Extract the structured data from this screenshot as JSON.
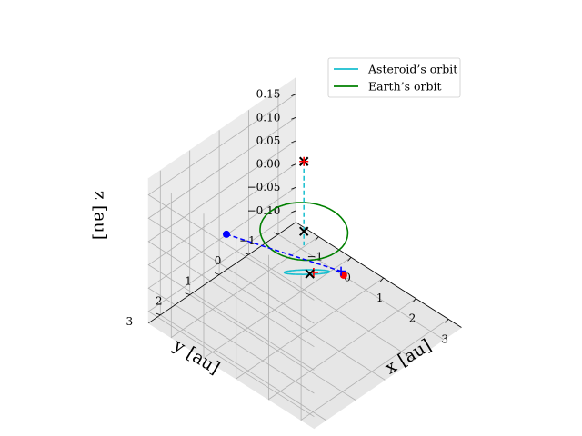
{
  "chart_data": {
    "type": "3d-line",
    "title": "",
    "legend": {
      "placement": "top-right",
      "entries": [
        {
          "label": "Asteroid’s orbit",
          "color": "#17becf"
        },
        {
          "label": "Earth’s orbit",
          "color": "#008000"
        }
      ]
    },
    "axes": {
      "x": {
        "label": "x [au]",
        "range": [
          -1.7,
          3.4
        ],
        "ticks": [
          -1,
          0,
          1,
          2,
          3
        ],
        "tick_labels": [
          "−1",
          "0",
          "1",
          "2",
          "3"
        ]
      },
      "y": {
        "label": "y [au]",
        "range": [
          -1.6,
          3.4
        ],
        "ticks": [
          -1,
          0,
          1,
          2,
          3
        ],
        "tick_labels": [
          "−1",
          "0",
          "1",
          "2",
          "3"
        ]
      },
      "z": {
        "label": "z [au]",
        "range": [
          -0.125,
          0.185
        ],
        "ticks": [
          -0.1,
          -0.05,
          0.0,
          0.05,
          0.1,
          0.15
        ],
        "tick_labels": [
          "−0.10",
          "−0.05",
          "0.00",
          "0.05",
          "0.10",
          "0.15"
        ]
      },
      "grid": true
    },
    "series": [
      {
        "name": "Asteroid’s orbit",
        "kind": "ellipse",
        "color": "#17becf",
        "style": "solid",
        "center": [
          1.0,
          1.0,
          0.0
        ],
        "semi_axes": [
          2.6,
          0.5
        ],
        "major_direction": [
          1,
          1,
          0.0638
        ],
        "minor_direction": [
          -1,
          1,
          0
        ]
      },
      {
        "name": "Earth’s orbit",
        "kind": "circle",
        "color": "#008000",
        "style": "solid",
        "center": [
          0,
          0,
          0
        ],
        "radius": 1.0
      }
    ],
    "markers": [
      {
        "label": "",
        "type": "dot",
        "color": "#0000ff",
        "point": [
          -0.3,
          2.3,
          0.08
        ]
      },
      {
        "label": "",
        "type": "dot",
        "color": "#ff0000",
        "point": [
          0.95,
          -0.3,
          -0.065
        ]
      },
      {
        "label": "",
        "type": "plus",
        "color": "#0000ff",
        "point": [
          0.6,
          -0.6,
          -0.085
        ]
      },
      {
        "label": "",
        "type": "plus",
        "color": "#ff0000",
        "point": [
          0.3,
          0.0,
          -0.075
        ]
      },
      {
        "label": "",
        "type": "x",
        "color": "#000000",
        "point": [
          0.0,
          -0.2,
          -0.1
        ]
      },
      {
        "label": "",
        "type": "x",
        "color": "#000000",
        "point": [
          0.0,
          0.0,
          0.0
        ]
      },
      {
        "label": "",
        "type": "x",
        "color": "#000000",
        "point": [
          0.0,
          0.0,
          0.15
        ]
      },
      {
        "label": "",
        "type": "plus",
        "color": "#ff0000",
        "point": [
          0.0,
          0.0,
          0.15
        ]
      }
    ],
    "segments": [
      {
        "from": [
          -0.3,
          2.3,
          0.08
        ],
        "to": [
          0.6,
          -0.6,
          -0.085
        ],
        "color": "#0000ff",
        "style": "dashed"
      },
      {
        "from": [
          0.0,
          0.0,
          0.15
        ],
        "to": [
          0.0,
          0.0,
          -0.03
        ],
        "color": "#17becf",
        "style": "dashed"
      }
    ]
  }
}
